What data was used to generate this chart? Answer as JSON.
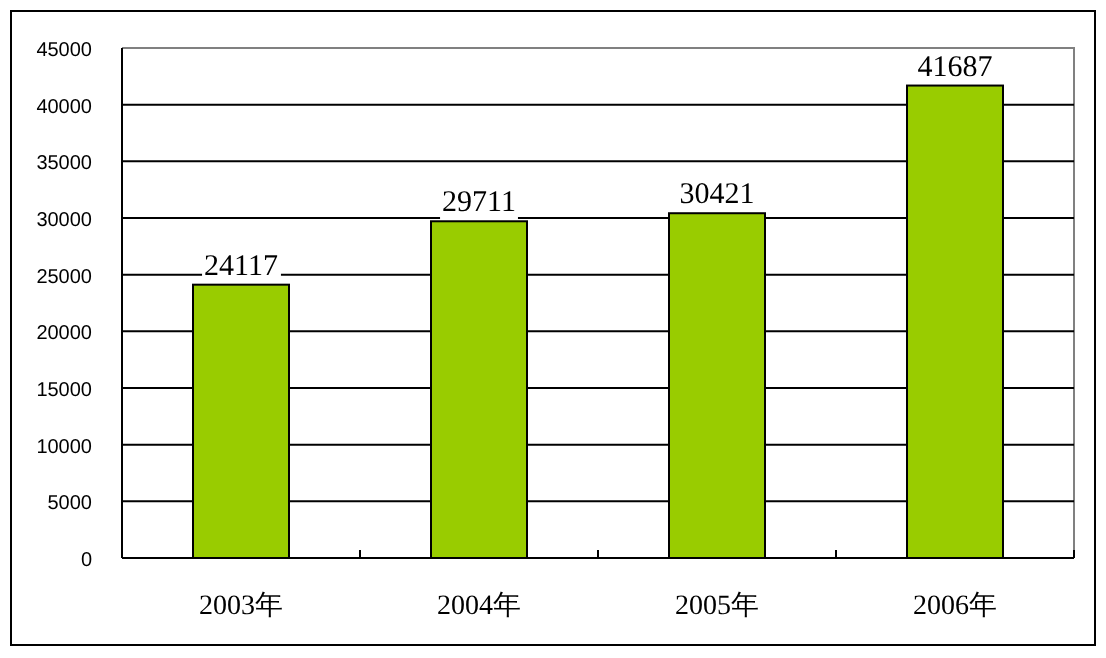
{
  "chart_data": {
    "type": "bar",
    "categories": [
      "2003年",
      "2004年",
      "2005年",
      "2006年"
    ],
    "values": [
      24117,
      29711,
      30421,
      41687
    ],
    "color": "#99cc00",
    "ylim": [
      0,
      45000
    ],
    "yticks": [
      0,
      5000,
      10000,
      15000,
      20000,
      25000,
      30000,
      35000,
      40000,
      45000
    ],
    "grid": "y",
    "data_labels": true
  }
}
